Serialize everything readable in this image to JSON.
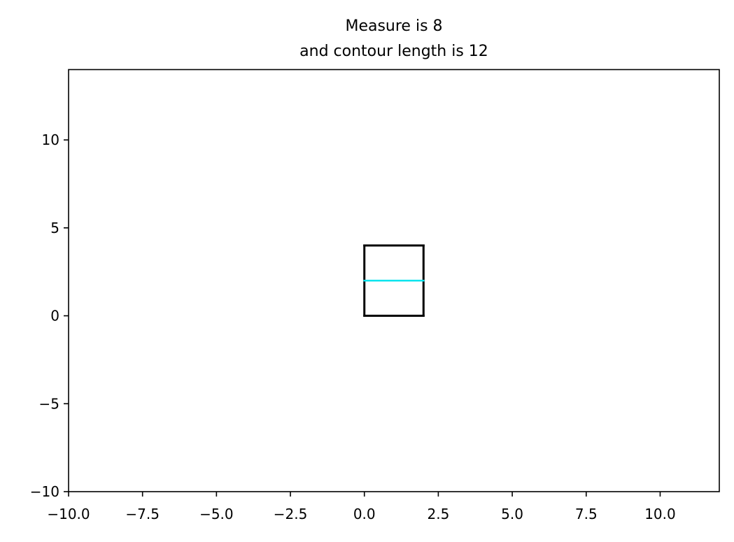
{
  "chart_data": {
    "type": "line",
    "title_lines": [
      "Measure is 8",
      "and contour length is 12"
    ],
    "xlim": [
      -10,
      12
    ],
    "ylim": [
      -10,
      14
    ],
    "x_ticks": [
      -10,
      -7.5,
      -5,
      -2.5,
      0,
      2.5,
      5,
      7.5,
      10
    ],
    "x_tick_labels": [
      "−10.0",
      "−7.5",
      "−5.0",
      "−2.5",
      "0.0",
      "2.5",
      "5.0",
      "7.5",
      "10.0"
    ],
    "y_ticks": [
      -10,
      -5,
      0,
      5,
      10
    ],
    "y_tick_labels": [
      "−10",
      "−5",
      "0",
      "5",
      "10"
    ],
    "grid": false,
    "series": [
      {
        "color": "#000000",
        "segments": [
          [
            [
              0,
              0
            ],
            [
              2,
              0
            ]
          ],
          [
            [
              2,
              0
            ],
            [
              2,
              4
            ]
          ],
          [
            [
              2,
              4
            ],
            [
              0,
              4
            ]
          ],
          [
            [
              0,
              4
            ],
            [
              0,
              0
            ]
          ]
        ]
      },
      {
        "color": "#00e5ee",
        "segments": [
          [
            [
              0,
              2
            ],
            [
              2,
              2
            ]
          ]
        ]
      }
    ]
  }
}
